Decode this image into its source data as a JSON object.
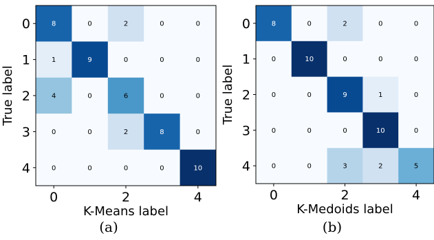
{
  "chart_data": [
    {
      "type": "heatmap",
      "title": "",
      "xlabel": "K-Means label",
      "ylabel": "True label",
      "x_ticks": [
        "0",
        "2",
        "4"
      ],
      "y_ticks": [
        "0",
        "1",
        "2",
        "3",
        "4"
      ],
      "matrix": [
        [
          8,
          0,
          2,
          0,
          0
        ],
        [
          1,
          9,
          0,
          0,
          0
        ],
        [
          4,
          0,
          6,
          0,
          0
        ],
        [
          0,
          0,
          2,
          8,
          0
        ],
        [
          0,
          0,
          0,
          0,
          10
        ]
      ],
      "vmax": 10,
      "colormap": "Blues",
      "caption": "(a)"
    },
    {
      "type": "heatmap",
      "title": "",
      "xlabel": "K-Medoids label",
      "ylabel": "True label",
      "x_ticks": [
        "0",
        "2",
        "4"
      ],
      "y_ticks": [
        "0",
        "1",
        "2",
        "3",
        "4"
      ],
      "matrix": [
        [
          8,
          0,
          2,
          0,
          0
        ],
        [
          0,
          10,
          0,
          0,
          0
        ],
        [
          0,
          0,
          9,
          1,
          0
        ],
        [
          0,
          0,
          0,
          10,
          0
        ],
        [
          0,
          0,
          3,
          2,
          5
        ]
      ],
      "vmax": 10,
      "colormap": "Blues",
      "caption": "(b)"
    }
  ],
  "colors": {
    "blues_low": "#f7fbff",
    "blues_mid": "#6baed6",
    "blues_high": "#08306b"
  }
}
